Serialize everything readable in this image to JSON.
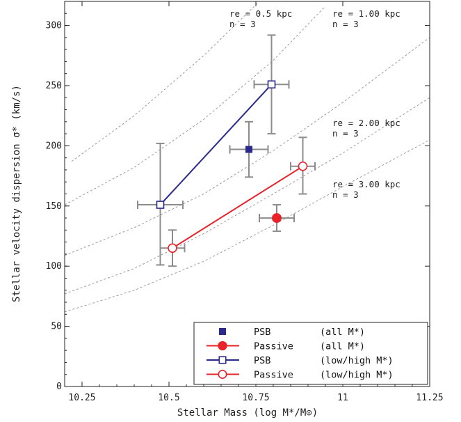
{
  "chart_data": {
    "type": "scatter",
    "title": "",
    "xlabel": "Stellar Mass (log M*/M⊙)",
    "ylabel": "Stellar velocity dispersion  σ* (km/s)",
    "xlim": [
      10.2,
      11.25
    ],
    "ylim": [
      0,
      320
    ],
    "xticks": [
      "10.25",
      "10.5",
      "10.75",
      "11",
      "11.25"
    ],
    "yticks": [
      "0",
      "50",
      "100",
      "150",
      "200",
      "250",
      "300"
    ],
    "colors": {
      "psb": "#2a2a8c",
      "passive": "#e8232a",
      "errorbar": "#8c8c8c",
      "curve": "#9a9a9a"
    },
    "series": [
      {
        "name": "PSB (all M*)",
        "marker": "filled-square",
        "connected": false,
        "points": [
          {
            "x": 10.73,
            "y": 197,
            "xerr": 0.055,
            "yerr_low": 23,
            "yerr_high": 23
          }
        ]
      },
      {
        "name": "Passive (all M*)",
        "marker": "filled-circle",
        "connected": false,
        "points": [
          {
            "x": 10.81,
            "y": 140,
            "xerr": 0.05,
            "yerr_low": 11,
            "yerr_high": 11
          }
        ]
      },
      {
        "name": "PSB (low/high M*)",
        "marker": "open-square",
        "connected": true,
        "points": [
          {
            "x": 10.475,
            "y": 151,
            "xerr": 0.065,
            "yerr_low": 50,
            "yerr_high": 51
          },
          {
            "x": 10.795,
            "y": 251,
            "xerr": 0.05,
            "yerr_low": 41,
            "yerr_high": 41
          }
        ]
      },
      {
        "name": "Passive (low/high M*)",
        "marker": "open-circle",
        "connected": true,
        "points": [
          {
            "x": 10.51,
            "y": 115,
            "xerr": 0.035,
            "yerr_low": 15,
            "yerr_high": 15
          },
          {
            "x": 10.885,
            "y": 183,
            "xerr": 0.035,
            "yerr_low": 23,
            "yerr_high": 24
          }
        ]
      }
    ],
    "model_curves": [
      {
        "re_label": "re = 0.5 kpc",
        "n_label": "n  = 3",
        "points": [
          [
            10.22,
            187
          ],
          [
            10.4,
            225
          ],
          [
            10.6,
            275
          ],
          [
            10.76,
            320
          ]
        ]
      },
      {
        "re_label": "re = 1.00 kpc",
        "n_label": "n  = 3",
        "points": [
          [
            10.2,
            151
          ],
          [
            10.4,
            182
          ],
          [
            10.6,
            222
          ],
          [
            10.8,
            271
          ],
          [
            10.95,
            316
          ]
        ]
      },
      {
        "re_label": "re = 2.00 kpc",
        "n_label": "n  = 3",
        "points": [
          [
            10.2,
            109
          ],
          [
            10.4,
            132
          ],
          [
            10.6,
            160
          ],
          [
            10.8,
            196
          ],
          [
            11.0,
            236
          ],
          [
            11.25,
            290
          ]
        ]
      },
      {
        "re_label": "re = 3.00 kpc",
        "n_label": "n  = 3",
        "points": [
          [
            10.2,
            77
          ],
          [
            10.4,
            98
          ],
          [
            10.6,
            127
          ],
          [
            10.8,
            160
          ],
          [
            11.0,
            194
          ],
          [
            11.25,
            240
          ]
        ]
      },
      {
        "re_label": "",
        "n_label": "",
        "points": [
          [
            10.2,
            62
          ],
          [
            10.4,
            80
          ],
          [
            10.6,
            104
          ],
          [
            10.8,
            134
          ],
          [
            11.0,
            166
          ],
          [
            11.25,
            205
          ]
        ]
      }
    ],
    "legend": {
      "position": "bottom-right",
      "entries": [
        {
          "series": 0,
          "name": "PSB",
          "qualifier": "(all M*)"
        },
        {
          "series": 1,
          "name": "Passive",
          "qualifier": "(all M*)"
        },
        {
          "series": 2,
          "name": "PSB",
          "qualifier": "(low/high M*)"
        },
        {
          "series": 3,
          "name": "Passive",
          "qualifier": "(low/high M*)"
        }
      ]
    },
    "grid": false
  }
}
